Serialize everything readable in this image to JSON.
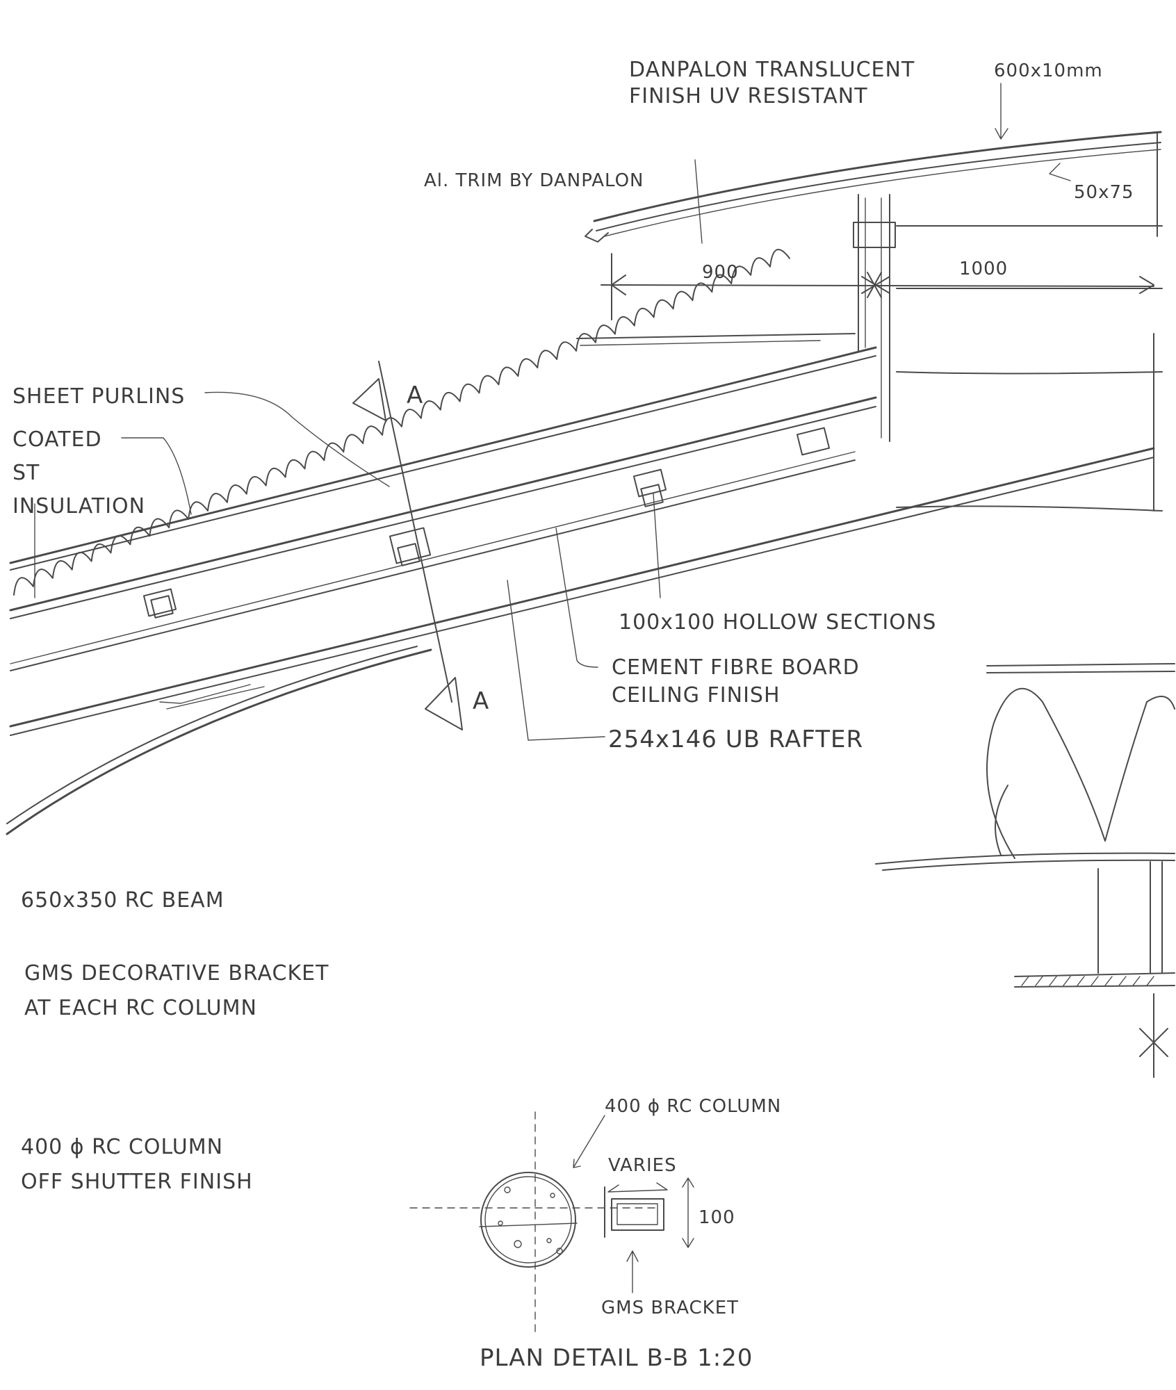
{
  "labels": {
    "roof_sheet_a": "DANPALON TRANSLUCENT",
    "roof_sheet_b": "FINISH UV RESISTANT",
    "rafter_top": "600x10mm",
    "trim": "Al. TRIM BY DANPALON",
    "section_top": "50x75",
    "dim_900": "900",
    "dim_1000": "1000",
    "purlins": "SHEET PURLINS",
    "coated": "COATED",
    "coated_2": "ST",
    "insulation": "INSULATION",
    "section_a_top": "A",
    "section_a_bottom": "A",
    "hollow": "100x100 HOLLOW SECTIONS",
    "cement_a": "CEMENT FIBRE BOARD",
    "cement_b": "CEILING FINISH",
    "rafter": "254x146 UB RAFTER",
    "beam": "650x350 RC BEAM",
    "bracket_a": "GMS DECORATIVE BRACKET",
    "bracket_b": "AT EACH RC COLUMN",
    "column_a": "400 ϕ RC COLUMN",
    "column_b": "OFF SHUTTER FINISH",
    "plan_column": "400 ϕ RC COLUMN",
    "varies": "VARIES",
    "dim_100": "100",
    "gms_bracket": "GMS BRACKET",
    "plan_title": "PLAN DETAIL B-B  1:20"
  }
}
